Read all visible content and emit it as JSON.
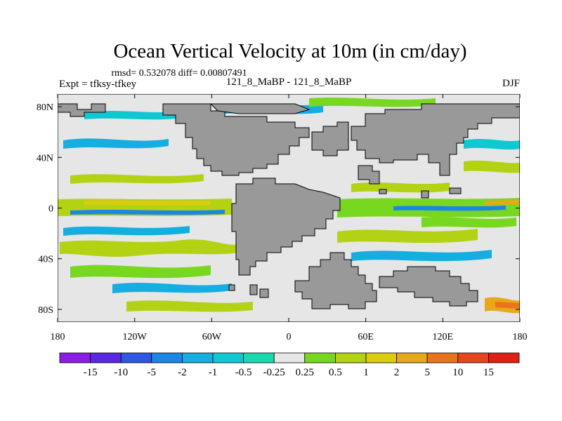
{
  "chart_data": {
    "type": "heatmap",
    "title": "Ocean Vertical Velocity at 10m (in cm/day)",
    "stats_line": "rmsd= 0.532078 diff= 0.00807491",
    "left_label": "Expt = tfksy-tfkey",
    "center_label": "121_8_MaBP - 121_8_MaBP",
    "right_label": "DJF",
    "x_ticks": [
      {
        "value": -180,
        "label": "180"
      },
      {
        "value": -120,
        "label": "120W"
      },
      {
        "value": -60,
        "label": "60W"
      },
      {
        "value": 0,
        "label": "0"
      },
      {
        "value": 60,
        "label": "60E"
      },
      {
        "value": 120,
        "label": "120E"
      },
      {
        "value": 180,
        "label": "180"
      }
    ],
    "y_ticks": [
      {
        "value": 80,
        "label": "80N"
      },
      {
        "value": 40,
        "label": "40N"
      },
      {
        "value": 0,
        "label": "0"
      },
      {
        "value": -40,
        "label": "40S"
      },
      {
        "value": -80,
        "label": "80S"
      }
    ],
    "xlim": [
      -180,
      180
    ],
    "ylim": [
      -90,
      90
    ],
    "colorbar": {
      "labels": [
        "-15",
        "-10",
        "-5",
        "-2",
        "-1",
        "-0.5",
        "-0.25",
        "0.25",
        "0.5",
        "1",
        "2",
        "5",
        "10",
        "15"
      ],
      "colors": [
        "#8a1ee8",
        "#5a28e0",
        "#2f56e4",
        "#1b86e6",
        "#14aee0",
        "#10c8d2",
        "#18d8b0",
        "#e6e6e6",
        "#78d820",
        "#b4d214",
        "#dccc10",
        "#e8a81c",
        "#ea741c",
        "#e6461c",
        "#e02014"
      ]
    },
    "field_description_colors": {
      "background_near_zero": "#e6e6e6",
      "land": "#999999"
    }
  }
}
